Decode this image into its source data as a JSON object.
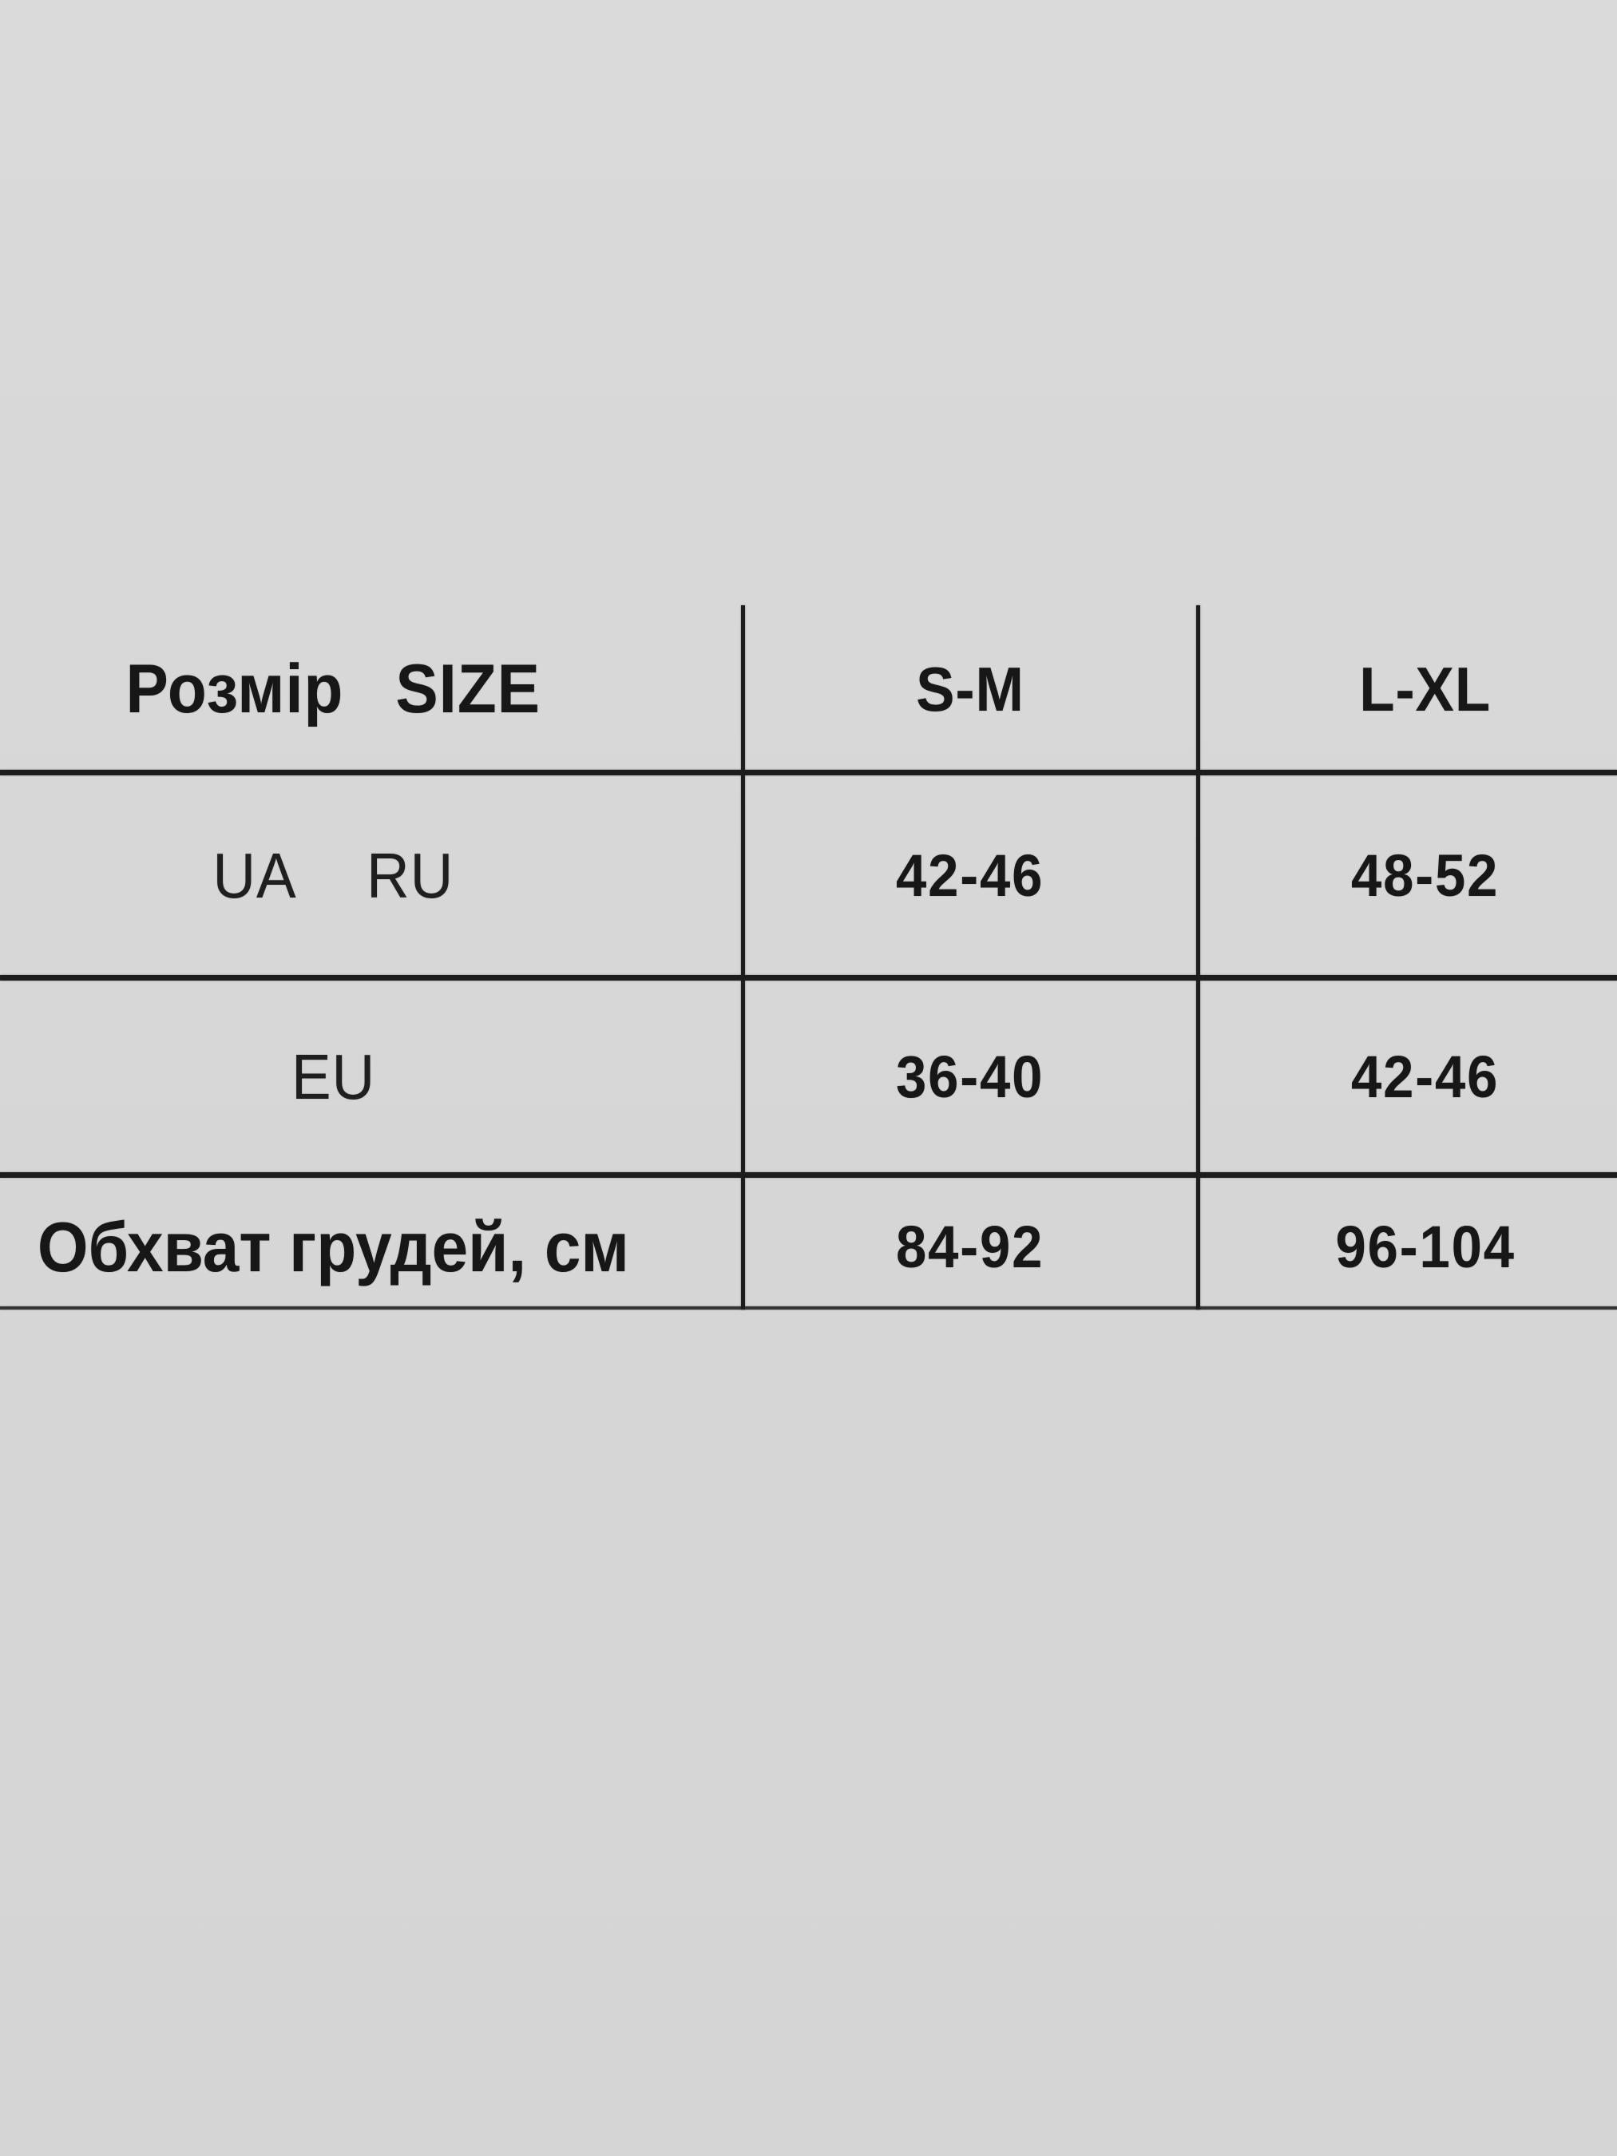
{
  "colors": {
    "background": "#d7d7d7",
    "line": "#1d1d1d",
    "text": "#171717"
  },
  "table": {
    "header": {
      "label_ua": "Розмір",
      "label_en": "SIZE",
      "col_sm": "S-M",
      "col_lxl": "L-XL"
    },
    "rows": [
      {
        "label_1": "UA",
        "label_2": "RU",
        "val_sm": "42-46",
        "val_lxl": "48-52"
      },
      {
        "label_1": "EU",
        "val_sm": "36-40",
        "val_lxl": "42-46"
      },
      {
        "label_1": "Обхват грудей, см",
        "val_sm": "84-92",
        "val_lxl": "96-104"
      }
    ]
  },
  "chart_data": {
    "type": "table",
    "title": "Розмір SIZE",
    "columns": [
      "Розмір SIZE",
      "S-M",
      "L-XL"
    ],
    "rows": [
      [
        "UA RU",
        "42-46",
        "48-52"
      ],
      [
        "EU",
        "36-40",
        "42-46"
      ],
      [
        "Обхват грудей, см",
        "84-92",
        "96-104"
      ]
    ]
  }
}
